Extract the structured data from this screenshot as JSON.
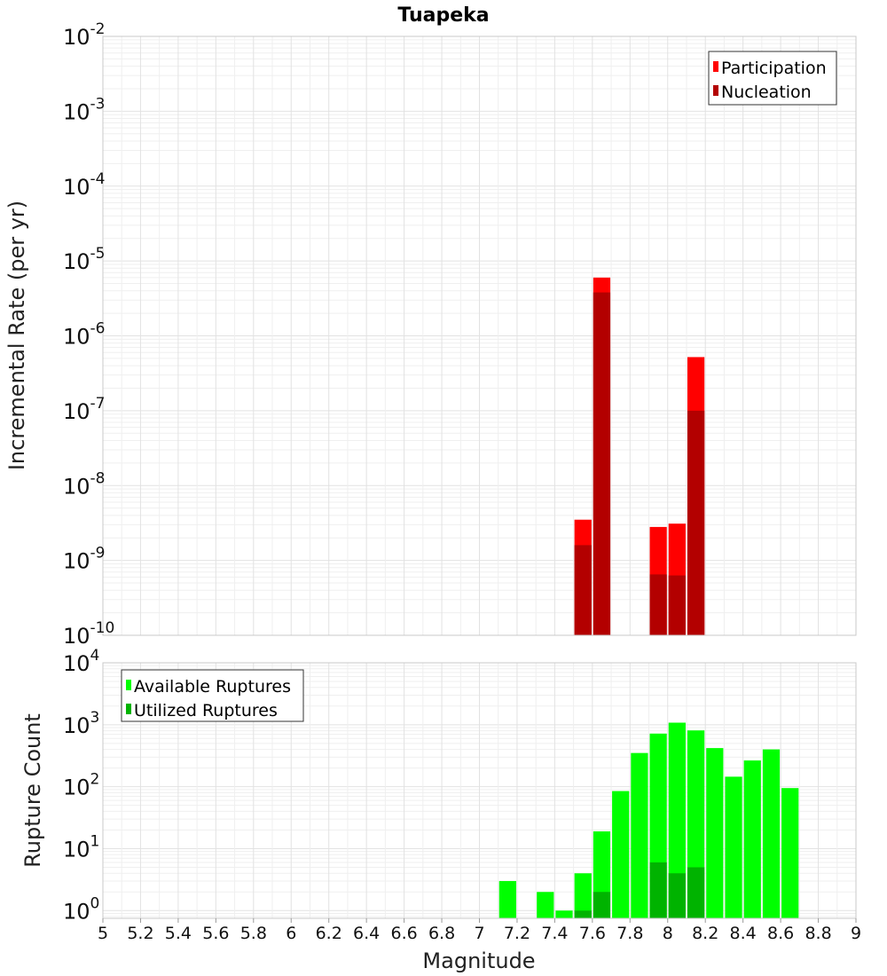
{
  "chart_data": [
    {
      "type": "bar",
      "title": "Tuapeka",
      "xlabel": "",
      "ylabel": "Incremental Rate (per yr)",
      "yscale": "log",
      "ylim": [
        1e-10,
        0.01
      ],
      "xlim": [
        5,
        9
      ],
      "y_ticks": [
        {
          "base": "10",
          "exp": "-2"
        },
        {
          "base": "10",
          "exp": "-3"
        },
        {
          "base": "10",
          "exp": "-4"
        },
        {
          "base": "10",
          "exp": "-5"
        },
        {
          "base": "10",
          "exp": "-6"
        },
        {
          "base": "10",
          "exp": "-7"
        },
        {
          "base": "10",
          "exp": "-8"
        },
        {
          "base": "10",
          "exp": "-9"
        },
        {
          "base": "10",
          "exp": "-10"
        }
      ],
      "grid": true,
      "legend_position": "top-right",
      "bar_width": 0.1,
      "series": [
        {
          "name": "Participation",
          "color": "#ff0000",
          "x": [
            7.55,
            7.65,
            7.95,
            8.05,
            8.15
          ],
          "values": [
            3.5e-09,
            6e-06,
            2.8e-09,
            3.1e-09,
            5.2e-07
          ]
        },
        {
          "name": "Nucleation",
          "color": "#b30000",
          "x": [
            7.55,
            7.65,
            7.95,
            8.05,
            8.15
          ],
          "values": [
            1.6e-09,
            3.8e-06,
            6.5e-10,
            6.3e-10,
            1e-07
          ]
        }
      ]
    },
    {
      "type": "bar",
      "title": "",
      "xlabel": "Magnitude",
      "ylabel": "Rupture Count",
      "yscale": "log",
      "ylim": [
        0.75,
        10000.0
      ],
      "xlim": [
        5,
        9
      ],
      "y_ticks": [
        {
          "value": 1,
          "base": "10",
          "exp": "0"
        },
        {
          "value": 10,
          "base": "10",
          "exp": "1"
        },
        {
          "value": 100,
          "base": "10",
          "exp": "2"
        },
        {
          "value": 1000,
          "base": "10",
          "exp": "3"
        },
        {
          "value": 10000,
          "base": "10",
          "exp": "4"
        }
      ],
      "x_ticks": [
        "5",
        "5.2",
        "5.4",
        "5.6",
        "5.8",
        "6",
        "6.2",
        "6.4",
        "6.6",
        "6.8",
        "7",
        "7.2",
        "7.4",
        "7.6",
        "7.8",
        "8",
        "8.2",
        "8.4",
        "8.6",
        "8.8",
        "9"
      ],
      "grid": true,
      "legend_position": "top-left",
      "bar_width": 0.1,
      "series": [
        {
          "name": "Available Ruptures",
          "color": "#00ff00",
          "x": [
            7.15,
            7.35,
            7.45,
            7.55,
            7.65,
            7.75,
            7.85,
            7.95,
            8.05,
            8.15,
            8.25,
            8.35,
            8.45,
            8.55,
            8.65
          ],
          "values": [
            3,
            2,
            1,
            4,
            19,
            85,
            350,
            720,
            1080,
            810,
            420,
            145,
            265,
            400,
            95
          ]
        },
        {
          "name": "Utilized Ruptures",
          "color": "#00b300",
          "x": [
            7.55,
            7.65,
            7.95,
            8.05,
            8.15
          ],
          "values": [
            1,
            2,
            6,
            4,
            5
          ]
        }
      ]
    }
  ]
}
